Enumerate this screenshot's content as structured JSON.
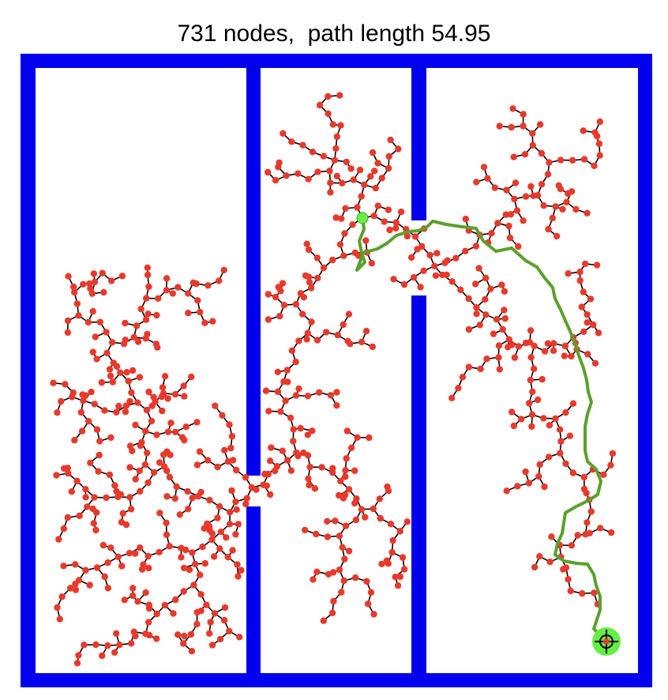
{
  "title": "731 nodes,  path length 54.95",
  "colors": {
    "wall": "#0000ee",
    "background": "#ffffff",
    "node": "#e8392b",
    "edge": "#000000",
    "path": "#5aa02c",
    "start": "#66ee44",
    "goal": "#66ee44"
  },
  "markers": {
    "start_icon": "start-circle",
    "goal_icon": "goal-crosshair"
  }
}
